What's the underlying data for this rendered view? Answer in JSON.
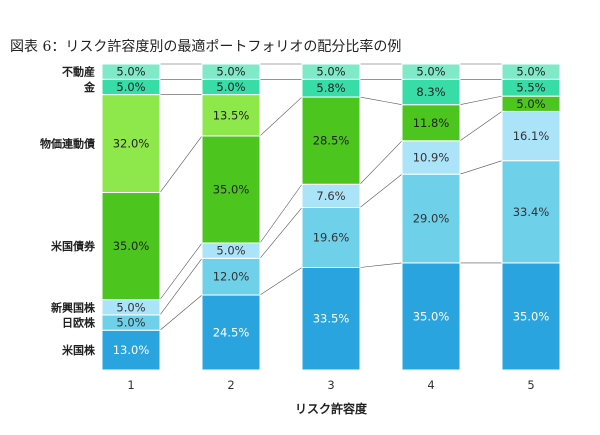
{
  "figure": {
    "title": "図表 6：リスク許容度別の最適ポートフォリオの配分比率の例"
  },
  "chart_data": {
    "type": "bar",
    "stacked": true,
    "xlabel": "リスク許容度",
    "categories": [
      "1",
      "2",
      "3",
      "4",
      "5"
    ],
    "ylim": [
      0,
      100
    ],
    "series": [
      {
        "name": "米国株",
        "color": "#2aa4df",
        "text_color": "#ffffff",
        "values": [
          13.0,
          24.5,
          33.5,
          35.0,
          35.0
        ],
        "labels": [
          "13.0%",
          "24.5%",
          "33.5%",
          "35.0%",
          "35.0%"
        ]
      },
      {
        "name": "日欧株",
        "color": "#6fd0ea",
        "text_color": "#333333",
        "values": [
          5.0,
          12.0,
          19.6,
          29.0,
          33.4
        ],
        "labels": [
          "5.0%",
          "12.0%",
          "19.6%",
          "29.0%",
          "33.4%"
        ]
      },
      {
        "name": "新興国株",
        "color": "#abe3f8",
        "text_color": "#333333",
        "values": [
          5.0,
          5.0,
          7.6,
          10.9,
          16.1
        ],
        "labels": [
          "5.0%",
          "5.0%",
          "7.6%",
          "10.9%",
          "16.1%"
        ]
      },
      {
        "name": "米国債券",
        "color": "#4cc51f",
        "text_color": "#222222",
        "values": [
          35.0,
          35.0,
          28.5,
          11.8,
          5.0
        ],
        "labels": [
          "35.0%",
          "35.0%",
          "28.5%",
          "11.8%",
          "5.0%"
        ]
      },
      {
        "name": "物価連動債",
        "color": "#8ee84c",
        "text_color": "#222222",
        "values": [
          32.0,
          13.5,
          0,
          0,
          0
        ],
        "labels": [
          "32.0%",
          "13.5%",
          "",
          "",
          ""
        ]
      },
      {
        "name": "金",
        "color": "#38dca7",
        "text_color": "#222222",
        "values": [
          5.0,
          5.0,
          5.8,
          8.3,
          5.5
        ],
        "labels": [
          "5.0%",
          "5.0%",
          "5.8%",
          "8.3%",
          "5.5%"
        ]
      },
      {
        "name": "不動産",
        "color": "#7fe9c8",
        "text_color": "#222222",
        "values": [
          5.0,
          5.0,
          5.0,
          5.0,
          5.0
        ],
        "labels": [
          "5.0%",
          "5.0%",
          "5.0%",
          "5.0%",
          "5.0%"
        ]
      }
    ]
  }
}
